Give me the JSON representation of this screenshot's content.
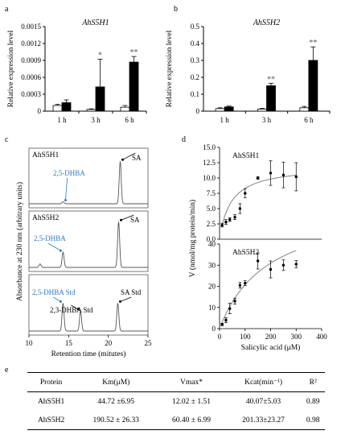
{
  "panels": {
    "a": "a",
    "b": "b",
    "c": "c",
    "d": "d",
    "e": "e"
  },
  "chart_data": [
    {
      "id": "a",
      "type": "bar",
      "title": "AhS5H1",
      "ylabel": "Relative expression level",
      "xlabel": "",
      "categories": [
        "1 h",
        "3 h",
        "6 h"
      ],
      "ylim": [
        0,
        0.0015
      ],
      "yticks": [
        "0",
        "0.0003",
        "0.0006",
        "0.0009",
        "0.0012",
        "0.0015"
      ],
      "ytick_values": [
        0,
        0.0003,
        0.0006,
        0.0009,
        0.0012,
        0.0015
      ],
      "series": [
        {
          "values": [
            0.0001,
            3e-05,
            7e-05
          ],
          "errors": [
            2e-05,
            1e-05,
            3e-05
          ],
          "fill": "#ffffff"
        },
        {
          "values": [
            0.00015,
            0.00043,
            0.00087
          ],
          "errors": [
            5e-05,
            0.00049,
            0.0001
          ],
          "fill": "#000000"
        }
      ],
      "significance": [
        "",
        "*",
        "**"
      ]
    },
    {
      "id": "b",
      "type": "bar",
      "title": "AhS5H2",
      "ylabel": "Relative expression level",
      "xlabel": "",
      "categories": [
        "1 h",
        "3 h",
        "6 h"
      ],
      "ylim": [
        0,
        0.5
      ],
      "yticks": [
        "0",
        "0.1",
        "0.2",
        "0.3",
        "0.4",
        "0.5"
      ],
      "ytick_values": [
        0,
        0.1,
        0.2,
        0.3,
        0.4,
        0.5
      ],
      "series": [
        {
          "values": [
            0.015,
            0.012,
            0.02
          ],
          "errors": [
            0.005,
            0.004,
            0.008
          ],
          "fill": "#ffffff"
        },
        {
          "values": [
            0.025,
            0.15,
            0.3
          ],
          "errors": [
            0.005,
            0.015,
            0.08
          ],
          "fill": "#000000"
        }
      ],
      "significance": [
        "",
        "**",
        "**"
      ]
    },
    {
      "id": "c",
      "type": "line",
      "ylabel": "Absorbance at 230 nm (arbitrary units)",
      "xlabel": "Retention time (mitutes)",
      "xlim": [
        10,
        25
      ],
      "xticks": [
        "10",
        "15",
        "20",
        "25"
      ],
      "xtick_values": [
        10,
        15,
        20,
        25
      ],
      "subpanels": [
        {
          "label": "AhS5H1",
          "peaks": [
            {
              "x": 14.3,
              "h": 0.04
            },
            {
              "x": 21.5,
              "h": 0.85
            }
          ],
          "annotations": [
            {
              "text": "2,5-DHBA",
              "color": "#2e7bbf",
              "target_x": 14.3
            },
            {
              "text": "SA",
              "color": "#000000",
              "target_x": 21.5
            }
          ]
        },
        {
          "label": "AhS5H2",
          "peaks": [
            {
              "x": 11.4,
              "h": 0.07
            },
            {
              "x": 14.3,
              "h": 0.3
            },
            {
              "x": 21.3,
              "h": 0.9
            }
          ],
          "annotations": [
            {
              "text": "2,5-DHBA",
              "color": "#2e7bbf",
              "target_x": 14.3
            },
            {
              "text": "SA",
              "color": "#000000",
              "target_x": 21.3
            }
          ]
        },
        {
          "label": "",
          "peaks": [
            {
              "x": 14.3,
              "h": 0.55
            },
            {
              "x": 16.5,
              "h": 0.4
            },
            {
              "x": 21.2,
              "h": 0.55
            }
          ],
          "annotations": [
            {
              "text": "2,5-DHBA Std",
              "color": "#2e7bbf",
              "target_x": 14.3
            },
            {
              "text": "2,3-DHBA Std",
              "color": "#000000",
              "target_x": 16.5
            },
            {
              "text": "SA Std",
              "color": "#000000",
              "target_x": 21.2
            }
          ]
        }
      ]
    },
    {
      "id": "d",
      "type": "scatter",
      "ylabel": "V (nmol/mg protein/min)",
      "xlabel": "Salicylic acid (μM)",
      "xlim": [
        0,
        400
      ],
      "xticks": [
        "0",
        "100",
        "200",
        "300",
        "400"
      ],
      "xtick_values": [
        0,
        100,
        200,
        300,
        400
      ],
      "subpanels": [
        {
          "label": "AhS5H1",
          "ylim": [
            0,
            15
          ],
          "yticks": [
            "0.0",
            "2.5",
            "5.0",
            "7.5",
            "10.0",
            "12.5",
            "15.0"
          ],
          "ytick_values": [
            0,
            2.5,
            5,
            7.5,
            10,
            12.5,
            15
          ],
          "x": [
            10,
            25,
            40,
            60,
            80,
            100,
            150,
            200,
            250,
            300
          ],
          "y": [
            2.3,
            2.8,
            3.2,
            3.6,
            5.0,
            7.5,
            10.0,
            10.8,
            10.5,
            10.2
          ],
          "err": [
            0.3,
            0.4,
            0.3,
            0.4,
            0.8,
            0.7,
            0.2,
            2.0,
            2.1,
            2.3
          ],
          "fit": {
            "vmax": 12.02,
            "km": 44.72
          }
        },
        {
          "label": "AhS5H2",
          "ylim": [
            0,
            40
          ],
          "yticks": [
            "0",
            "10",
            "20",
            "30",
            "40"
          ],
          "ytick_values": [
            0,
            10,
            20,
            30,
            40
          ],
          "x": [
            10,
            25,
            40,
            60,
            80,
            100,
            150,
            200,
            250,
            300
          ],
          "y": [
            2.0,
            4.0,
            9.5,
            13.0,
            20.5,
            21.5,
            32.0,
            28.0,
            30.0,
            30.5
          ],
          "err": [
            0.6,
            1.2,
            2.5,
            1.4,
            1.3,
            1.1,
            3.8,
            4.0,
            2.5,
            1.7
          ],
          "fit": {
            "vmax": 60.4,
            "km": 190.52
          }
        }
      ]
    }
  ],
  "table": {
    "headers": [
      "Protein",
      "Km(μM)",
      "Vmax*",
      "Kcat(min⁻¹)",
      "R²"
    ],
    "rows": [
      [
        "AhS5H1",
        "44.72 ±6.95",
        "12.02 ± 1.51",
        "40.07±5.03",
        "0.89"
      ],
      [
        "AhS5H2",
        "190.52 ± 26.33",
        "60.40 ± 6.99",
        "201.33±23.27",
        "0.98"
      ]
    ]
  }
}
